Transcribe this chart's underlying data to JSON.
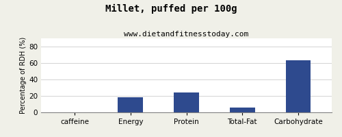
{
  "title": "Millet, puffed per 100g",
  "subtitle": "www.dietandfitnesstoday.com",
  "categories": [
    "caffeine",
    "Energy",
    "Protein",
    "Total-Fat",
    "Carbohydrate"
  ],
  "values": [
    0,
    18,
    24,
    6,
    63
  ],
  "bar_color": "#2e4a8e",
  "ylabel": "Percentage of RDH (%)",
  "ylim": [
    0,
    90
  ],
  "yticks": [
    0,
    20,
    40,
    60,
    80
  ],
  "background_color": "#f0f0e8",
  "plot_bg_color": "#ffffff",
  "title_fontsize": 10,
  "subtitle_fontsize": 8,
  "ylabel_fontsize": 7,
  "tick_fontsize": 7.5,
  "bar_width": 0.45
}
